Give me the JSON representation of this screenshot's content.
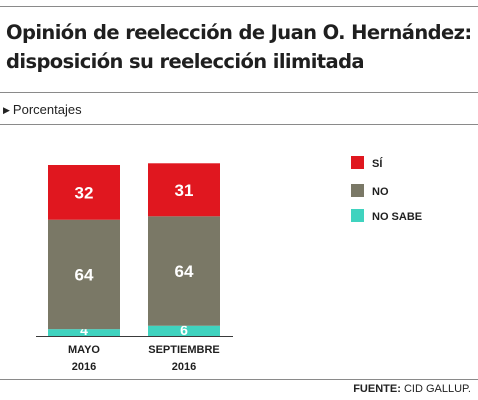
{
  "title_line1": "Opinión de reelección de Juan O. Hernández:",
  "title_line2": "disposición su reelección ilimitada",
  "subtitle": "Porcentajes",
  "source_label": "FUENTE:",
  "source_text": "CID GALLUP.",
  "chart_data": {
    "type": "bar",
    "stacked": true,
    "categories": [
      "MAYO 2016",
      "SEPTIEMBRE 2016"
    ],
    "category_lines": [
      [
        "MAYO",
        "2016"
      ],
      [
        "SEPTIEMBRE",
        "2016"
      ]
    ],
    "series": [
      {
        "name": "NO SABE",
        "values": [
          4,
          6
        ],
        "color": "#3fd3bf"
      },
      {
        "name": "NO",
        "values": [
          64,
          64
        ],
        "color": "#7a7866"
      },
      {
        "name": "SÍ",
        "values": [
          32,
          31
        ],
        "color": "#e0171f"
      }
    ],
    "legend_order": [
      "SÍ",
      "NO",
      "NO SABE"
    ],
    "ylim": [
      0,
      100
    ],
    "grid": false,
    "legend_position": "right"
  }
}
